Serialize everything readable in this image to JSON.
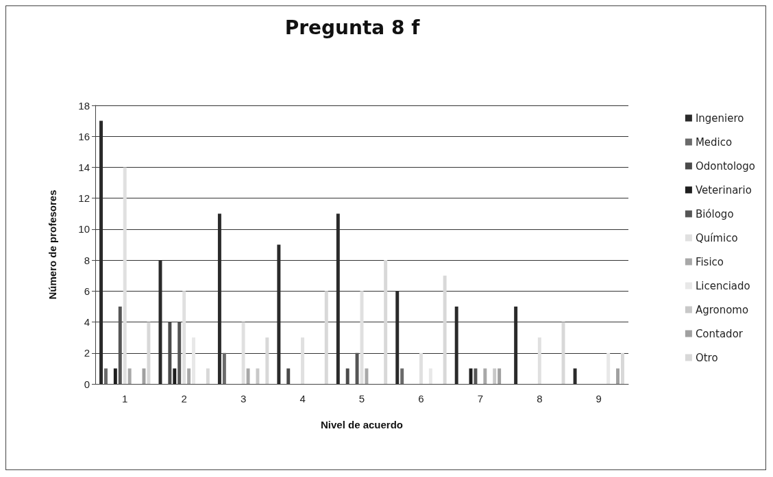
{
  "chart_data": {
    "type": "bar",
    "title": "Pregunta 8 f",
    "xlabel": "Nivel de acuerdo",
    "ylabel": "Número de profesores",
    "categories": [
      "1",
      "2",
      "3",
      "4",
      "5",
      "6",
      "7",
      "8",
      "9"
    ],
    "ylim": [
      0,
      18
    ],
    "yticks": [
      0,
      2,
      4,
      6,
      8,
      10,
      12,
      14,
      16,
      18
    ],
    "grid": "y",
    "legend": "right",
    "series": [
      {
        "name": "Ingeniero",
        "color": "#2a2a2a",
        "values": [
          17,
          8,
          11,
          9,
          11,
          6,
          5,
          5,
          1
        ]
      },
      {
        "name": "Medico",
        "color": "#6a6a6a",
        "values": [
          1,
          0,
          2,
          0,
          0,
          1,
          0,
          0,
          0
        ]
      },
      {
        "name": "Odontologo",
        "color": "#4a4a4a",
        "values": [
          0,
          4,
          0,
          1,
          1,
          0,
          0,
          0,
          0
        ]
      },
      {
        "name": "Veterinario",
        "color": "#1e1e1e",
        "values": [
          1,
          1,
          0,
          0,
          0,
          0,
          1,
          0,
          0
        ]
      },
      {
        "name": "Biólogo",
        "color": "#555555",
        "values": [
          5,
          4,
          0,
          0,
          2,
          0,
          1,
          0,
          0
        ]
      },
      {
        "name": "Químico",
        "color": "#e0e0e0",
        "values": [
          14,
          6,
          4,
          3,
          6,
          2,
          0,
          3,
          0
        ]
      },
      {
        "name": "Fisico",
        "color": "#a8a8a8",
        "values": [
          1,
          1,
          1,
          0,
          1,
          0,
          1,
          0,
          0
        ]
      },
      {
        "name": "Licenciado",
        "color": "#e8e8e8",
        "values": [
          0,
          3,
          0,
          0,
          0,
          1,
          0,
          0,
          2
        ]
      },
      {
        "name": "Agronomo",
        "color": "#c8c8c8",
        "values": [
          0,
          0,
          1,
          0,
          0,
          0,
          1,
          0,
          0
        ]
      },
      {
        "name": "Contador",
        "color": "#a0a0a0",
        "values": [
          1,
          0,
          0,
          0,
          0,
          0,
          1,
          0,
          1
        ]
      },
      {
        "name": "Otro",
        "color": "#d8d8d8",
        "values": [
          4,
          1,
          3,
          6,
          8,
          7,
          0,
          4,
          2
        ]
      }
    ]
  }
}
